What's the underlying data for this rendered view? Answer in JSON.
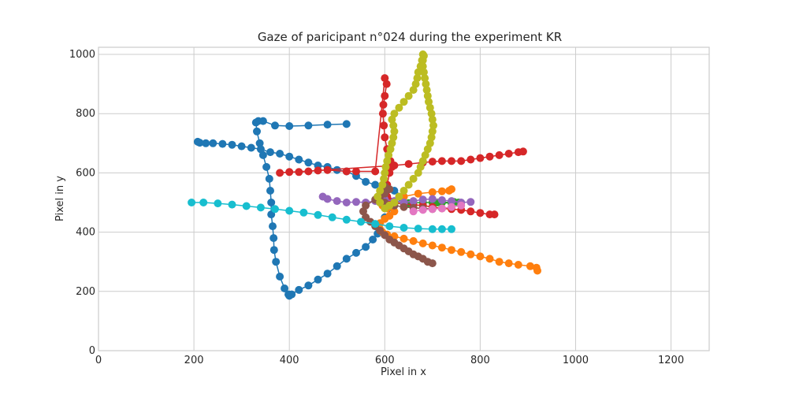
{
  "chart_data": {
    "type": "scatter",
    "title": "Gaze of paricipant n°024 during the experiment KR",
    "xlabel": "Pixel in x",
    "ylabel": "Pixel in y",
    "xlim": [
      0,
      1280
    ],
    "ylim": [
      0,
      1024
    ],
    "xticks": [
      0,
      200,
      400,
      600,
      800,
      1000,
      1200
    ],
    "yticks": [
      0,
      200,
      400,
      600,
      800,
      1000
    ],
    "grid": true,
    "legend": "none",
    "series": [
      {
        "color": "#1f77b4",
        "points": [
          [
            520,
            765
          ],
          [
            480,
            763
          ],
          [
            440,
            760
          ],
          [
            400,
            758
          ],
          [
            370,
            760
          ],
          [
            345,
            775
          ],
          [
            335,
            775
          ],
          [
            330,
            770
          ],
          [
            332,
            740
          ],
          [
            338,
            700
          ],
          [
            345,
            660
          ],
          [
            352,
            620
          ],
          [
            358,
            580
          ],
          [
            360,
            540
          ],
          [
            362,
            500
          ],
          [
            362,
            460
          ],
          [
            365,
            420
          ],
          [
            367,
            380
          ],
          [
            368,
            340
          ],
          [
            372,
            300
          ],
          [
            380,
            250
          ],
          [
            390,
            210
          ],
          [
            398,
            190
          ],
          [
            400,
            185
          ],
          [
            405,
            190
          ],
          [
            420,
            205
          ],
          [
            440,
            220
          ],
          [
            460,
            240
          ],
          [
            480,
            260
          ],
          [
            500,
            285
          ],
          [
            520,
            310
          ],
          [
            540,
            330
          ],
          [
            560,
            350
          ],
          [
            575,
            375
          ],
          [
            585,
            395
          ],
          [
            600,
            450
          ],
          [
            620,
            490
          ],
          [
            640,
            520
          ],
          [
            620,
            540
          ],
          [
            600,
            555
          ],
          [
            580,
            560
          ],
          [
            560,
            570
          ],
          [
            540,
            590
          ],
          [
            520,
            605
          ],
          [
            500,
            610
          ],
          [
            480,
            620
          ],
          [
            460,
            625
          ],
          [
            440,
            635
          ],
          [
            420,
            645
          ],
          [
            400,
            655
          ],
          [
            380,
            665
          ],
          [
            360,
            670
          ],
          [
            340,
            680
          ],
          [
            320,
            685
          ],
          [
            300,
            690
          ],
          [
            280,
            695
          ],
          [
            260,
            698
          ],
          [
            240,
            700
          ],
          [
            225,
            700
          ],
          [
            212,
            702
          ],
          [
            208,
            705
          ]
        ]
      },
      {
        "color": "#ff7f0e",
        "points": [
          [
            920,
            270
          ],
          [
            918,
            280
          ],
          [
            905,
            285
          ],
          [
            880,
            290
          ],
          [
            860,
            295
          ],
          [
            840,
            300
          ],
          [
            820,
            310
          ],
          [
            800,
            318
          ],
          [
            780,
            325
          ],
          [
            760,
            333
          ],
          [
            740,
            340
          ],
          [
            720,
            348
          ],
          [
            700,
            355
          ],
          [
            680,
            362
          ],
          [
            660,
            370
          ],
          [
            640,
            378
          ],
          [
            620,
            386
          ],
          [
            605,
            392
          ],
          [
            595,
            400
          ],
          [
            590,
            410
          ],
          [
            585,
            420
          ],
          [
            590,
            430
          ],
          [
            600,
            445
          ],
          [
            610,
            455
          ],
          [
            620,
            470
          ],
          [
            605,
            480
          ],
          [
            595,
            490
          ],
          [
            610,
            505
          ],
          [
            640,
            520
          ],
          [
            670,
            530
          ],
          [
            700,
            535
          ],
          [
            720,
            538
          ],
          [
            735,
            540
          ],
          [
            740,
            545
          ]
        ]
      },
      {
        "color": "#2ca02c",
        "points": [
          [
            590,
            500
          ],
          [
            620,
            497
          ],
          [
            650,
            498
          ],
          [
            680,
            500
          ],
          [
            710,
            500
          ],
          [
            740,
            498
          ],
          [
            755,
            500
          ],
          [
            745,
            502
          ],
          [
            720,
            500
          ],
          [
            700,
            500
          ]
        ]
      },
      {
        "color": "#d62728",
        "points": [
          [
            830,
            460
          ],
          [
            820,
            460
          ],
          [
            800,
            465
          ],
          [
            780,
            470
          ],
          [
            760,
            475
          ],
          [
            740,
            478
          ],
          [
            720,
            480
          ],
          [
            700,
            485
          ],
          [
            680,
            490
          ],
          [
            660,
            492
          ],
          [
            640,
            495
          ],
          [
            620,
            500
          ],
          [
            610,
            505
          ],
          [
            605,
            520
          ],
          [
            604,
            540
          ],
          [
            605,
            560
          ],
          [
            610,
            600
          ],
          [
            615,
            620
          ],
          [
            612,
            640
          ],
          [
            605,
            680
          ],
          [
            600,
            720
          ],
          [
            598,
            760
          ],
          [
            596,
            800
          ],
          [
            597,
            830
          ],
          [
            600,
            860
          ],
          [
            604,
            900
          ],
          [
            600,
            920
          ],
          [
            580,
            605
          ],
          [
            540,
            605
          ],
          [
            520,
            605
          ],
          [
            480,
            610
          ],
          [
            460,
            608
          ],
          [
            440,
            605
          ],
          [
            420,
            603
          ],
          [
            400,
            603
          ],
          [
            380,
            600
          ],
          [
            620,
            625
          ],
          [
            650,
            630
          ],
          [
            680,
            635
          ],
          [
            700,
            638
          ],
          [
            720,
            640
          ],
          [
            740,
            640
          ],
          [
            760,
            640
          ],
          [
            780,
            645
          ],
          [
            800,
            650
          ],
          [
            820,
            655
          ],
          [
            840,
            660
          ],
          [
            860,
            665
          ],
          [
            880,
            670
          ],
          [
            890,
            672
          ]
        ]
      },
      {
        "color": "#9467bd",
        "points": [
          [
            470,
            520
          ],
          [
            480,
            512
          ],
          [
            500,
            505
          ],
          [
            520,
            500
          ],
          [
            540,
            502
          ],
          [
            560,
            500
          ],
          [
            580,
            505
          ],
          [
            600,
            510
          ],
          [
            620,
            505
          ],
          [
            640,
            500
          ],
          [
            660,
            505
          ],
          [
            680,
            510
          ],
          [
            700,
            512
          ],
          [
            720,
            508
          ],
          [
            740,
            505
          ],
          [
            760,
            500
          ],
          [
            780,
            502
          ]
        ]
      },
      {
        "color": "#8c564b",
        "points": [
          [
            700,
            295
          ],
          [
            690,
            300
          ],
          [
            680,
            310
          ],
          [
            670,
            318
          ],
          [
            660,
            325
          ],
          [
            650,
            335
          ],
          [
            640,
            345
          ],
          [
            630,
            355
          ],
          [
            620,
            365
          ],
          [
            610,
            375
          ],
          [
            600,
            390
          ],
          [
            590,
            405
          ],
          [
            580,
            420
          ],
          [
            570,
            435
          ],
          [
            560,
            450
          ],
          [
            555,
            470
          ],
          [
            560,
            490
          ],
          [
            580,
            510
          ],
          [
            600,
            530
          ],
          [
            610,
            545
          ],
          [
            600,
            555
          ],
          [
            590,
            520
          ],
          [
            600,
            500
          ],
          [
            620,
            490
          ],
          [
            640,
            485
          ],
          [
            660,
            482
          ],
          [
            680,
            480
          ],
          [
            700,
            478
          ]
        ]
      },
      {
        "color": "#e377c2",
        "points": [
          [
            660,
            470
          ],
          [
            680,
            475
          ],
          [
            700,
            478
          ],
          [
            720,
            480
          ],
          [
            740,
            485
          ],
          [
            760,
            490
          ]
        ]
      },
      {
        "color": "#bcbd22",
        "points": [
          [
            680,
            1000
          ],
          [
            678,
            980
          ],
          [
            675,
            960
          ],
          [
            670,
            940
          ],
          [
            668,
            920
          ],
          [
            665,
            900
          ],
          [
            660,
            880
          ],
          [
            650,
            860
          ],
          [
            640,
            840
          ],
          [
            630,
            820
          ],
          [
            620,
            800
          ],
          [
            615,
            780
          ],
          [
            618,
            760
          ],
          [
            620,
            740
          ],
          [
            618,
            720
          ],
          [
            615,
            700
          ],
          [
            612,
            680
          ],
          [
            608,
            660
          ],
          [
            605,
            640
          ],
          [
            602,
            620
          ],
          [
            600,
            600
          ],
          [
            598,
            580
          ],
          [
            595,
            560
          ],
          [
            590,
            540
          ],
          [
            585,
            520
          ],
          [
            590,
            500
          ],
          [
            600,
            480
          ],
          [
            610,
            490
          ],
          [
            620,
            500
          ],
          [
            630,
            520
          ],
          [
            640,
            540
          ],
          [
            650,
            560
          ],
          [
            660,
            580
          ],
          [
            670,
            600
          ],
          [
            675,
            620
          ],
          [
            680,
            640
          ],
          [
            685,
            660
          ],
          [
            690,
            680
          ],
          [
            695,
            700
          ],
          [
            698,
            720
          ],
          [
            700,
            740
          ],
          [
            702,
            760
          ],
          [
            700,
            780
          ],
          [
            698,
            800
          ],
          [
            695,
            820
          ],
          [
            692,
            840
          ],
          [
            690,
            860
          ],
          [
            688,
            880
          ],
          [
            686,
            900
          ],
          [
            684,
            920
          ],
          [
            682,
            940
          ],
          [
            680,
            960
          ],
          [
            680,
            980
          ],
          [
            682,
            995
          ]
        ]
      },
      {
        "color": "#17becf",
        "points": [
          [
            195,
            500
          ],
          [
            220,
            500
          ],
          [
            250,
            497
          ],
          [
            280,
            493
          ],
          [
            310,
            488
          ],
          [
            340,
            483
          ],
          [
            370,
            478
          ],
          [
            400,
            472
          ],
          [
            430,
            466
          ],
          [
            460,
            458
          ],
          [
            490,
            450
          ],
          [
            520,
            442
          ],
          [
            550,
            435
          ],
          [
            580,
            428
          ],
          [
            610,
            420
          ],
          [
            640,
            415
          ],
          [
            670,
            412
          ],
          [
            700,
            410
          ],
          [
            720,
            410
          ],
          [
            740,
            410
          ]
        ]
      }
    ]
  }
}
